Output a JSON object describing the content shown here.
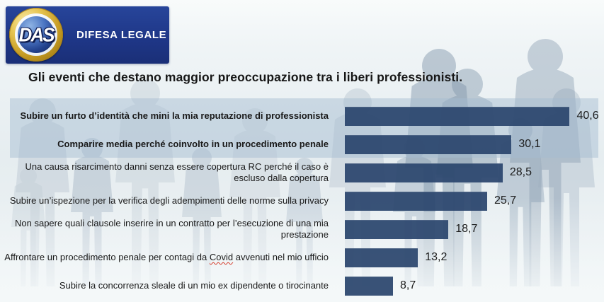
{
  "logo": {
    "emblem_text": "DAS",
    "label": "DIFESA LEGALE"
  },
  "title": "Gli eventi che destano maggior preoccupazione tra i liberi professionisti.",
  "chart_data": {
    "type": "bar",
    "orientation": "horizontal",
    "title": "Gli eventi che destano maggior preoccupazione tra i liberi professionisti.",
    "categories": [
      "Subire un furto d’identità che mini la mia reputazione di professionista",
      "Comparire media perché coinvolto in un procedimento penale",
      "Una causa risarcimento danni senza essere copertura RC perché il caso è escluso dalla copertura",
      "Subire un’ispezione per la verifica degli adempimenti delle norme sulla privacy",
      "Non sapere quali clausole inserire in un contratto per l’esecuzione di una mia prestazione",
      "Affrontare un procedimento penale per contagi da Covid avvenuti nel mio ufficio",
      "Subire la concorrenza sleale di un mio ex dipendente o tirocinante"
    ],
    "values": [
      40.6,
      30.1,
      28.5,
      25.7,
      18.7,
      13.2,
      8.7
    ],
    "value_labels": [
      "40,6",
      "30,1",
      "28,5",
      "25,7",
      "18,7",
      "13,2",
      "8,7"
    ],
    "highlighted_rows": [
      0,
      1
    ],
    "spellcheck_words": {
      "5": "Covid"
    },
    "xlim": [
      0,
      43
    ],
    "bar_color": "#2d476e",
    "highlight_color": "#a6bcd1",
    "legend": null,
    "grid": false
  }
}
